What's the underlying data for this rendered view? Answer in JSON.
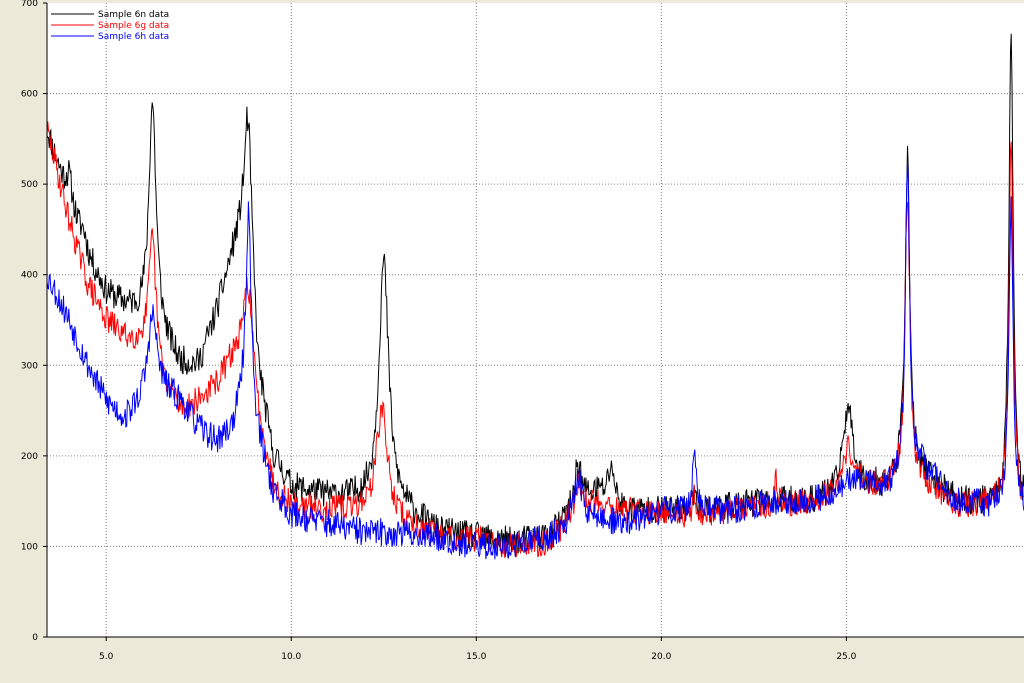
{
  "colors": {
    "window_background": "#ece9d8",
    "plot_background": "#ffffff",
    "grid": "#808080",
    "series_6n": "#000000",
    "series_6g": "#ff0000",
    "series_6h": "#0000ff"
  },
  "chart_data": {
    "type": "line",
    "title": "",
    "xlabel": "",
    "ylabel": "",
    "xlim": [
      3.4,
      29.8
    ],
    "ylim": [
      0,
      700
    ],
    "x_ticks": [
      5,
      10,
      15,
      20,
      25
    ],
    "x_tick_labels": [
      "5.0",
      "10.0",
      "15.0",
      "20.0",
      "25.0"
    ],
    "y_ticks": [
      0,
      100,
      200,
      300,
      400,
      500,
      600,
      700
    ],
    "y_tick_labels": [
      "0",
      "100",
      "200",
      "300",
      "400",
      "500",
      "600",
      "700"
    ],
    "grid": true,
    "grid_style": "dotted",
    "legend_position": "top-left",
    "series": [
      {
        "name": "Sample 6n data",
        "color": "#000000",
        "baseline": [
          [
            3.4,
            560
          ],
          [
            4.0,
            480
          ],
          [
            4.5,
            420
          ],
          [
            5.0,
            380
          ],
          [
            5.5,
            365
          ],
          [
            6.0,
            350
          ],
          [
            6.5,
            330
          ],
          [
            7.0,
            300
          ],
          [
            7.5,
            300
          ],
          [
            8.0,
            360
          ],
          [
            8.4,
            420
          ],
          [
            8.8,
            470
          ],
          [
            9.1,
            290
          ],
          [
            9.5,
            200
          ],
          [
            10.0,
            165
          ],
          [
            11.0,
            155
          ],
          [
            12.0,
            150
          ],
          [
            13.0,
            140
          ],
          [
            14.0,
            115
          ],
          [
            15.0,
            110
          ],
          [
            16.0,
            105
          ],
          [
            17.0,
            112
          ],
          [
            17.8,
            150
          ],
          [
            18.3,
            160
          ],
          [
            19.0,
            140
          ],
          [
            20.0,
            140
          ],
          [
            21.0,
            140
          ],
          [
            22.0,
            145
          ],
          [
            23.0,
            150
          ],
          [
            24.0,
            150
          ],
          [
            24.7,
            160
          ],
          [
            25.0,
            195
          ],
          [
            25.4,
            170
          ],
          [
            26.0,
            165
          ],
          [
            26.5,
            175
          ],
          [
            27.0,
            180
          ],
          [
            28.0,
            150
          ],
          [
            29.3,
            145
          ],
          [
            29.8,
            140
          ]
        ],
        "peaks": [
          [
            4.0,
            30,
            0.1
          ],
          [
            4.4,
            15,
            0.1
          ],
          [
            6.25,
            250,
            0.12
          ],
          [
            8.85,
            120,
            0.12
          ],
          [
            12.5,
            270,
            0.16
          ],
          [
            17.75,
            45,
            0.1
          ],
          [
            18.65,
            40,
            0.1
          ],
          [
            20.9,
            30,
            0.05
          ],
          [
            25.05,
            60,
            0.15
          ],
          [
            26.65,
            350,
            0.08
          ],
          [
            29.45,
            530,
            0.07
          ]
        ],
        "noise": 16,
        "seed": 11
      },
      {
        "name": "Sample 6g data",
        "color": "#ff0000",
        "baseline": [
          [
            3.4,
            560
          ],
          [
            4.0,
            460
          ],
          [
            4.5,
            390
          ],
          [
            5.0,
            350
          ],
          [
            5.5,
            330
          ],
          [
            6.0,
            320
          ],
          [
            6.5,
            280
          ],
          [
            7.0,
            250
          ],
          [
            7.5,
            260
          ],
          [
            8.0,
            280
          ],
          [
            8.4,
            310
          ],
          [
            8.8,
            330
          ],
          [
            9.1,
            250
          ],
          [
            9.5,
            170
          ],
          [
            10.0,
            145
          ],
          [
            11.0,
            140
          ],
          [
            12.0,
            138
          ],
          [
            13.0,
            125
          ],
          [
            14.0,
            110
          ],
          [
            15.0,
            108
          ],
          [
            16.0,
            100
          ],
          [
            17.0,
            105
          ],
          [
            17.8,
            145
          ],
          [
            18.3,
            150
          ],
          [
            19.0,
            140
          ],
          [
            20.0,
            135
          ],
          [
            21.0,
            135
          ],
          [
            22.0,
            140
          ],
          [
            23.0,
            145
          ],
          [
            24.0,
            150
          ],
          [
            24.7,
            160
          ],
          [
            25.0,
            180
          ],
          [
            25.4,
            170
          ],
          [
            26.0,
            165
          ],
          [
            26.5,
            170
          ],
          [
            27.0,
            170
          ],
          [
            28.0,
            145
          ],
          [
            29.3,
            145
          ],
          [
            29.8,
            140
          ]
        ],
        "peaks": [
          [
            6.25,
            140,
            0.12
          ],
          [
            8.85,
            70,
            0.12
          ],
          [
            12.45,
            120,
            0.18
          ],
          [
            17.75,
            30,
            0.1
          ],
          [
            20.9,
            25,
            0.05
          ],
          [
            23.1,
            30,
            0.05
          ],
          [
            25.05,
            30,
            0.15
          ],
          [
            26.65,
            320,
            0.08
          ],
          [
            29.45,
            400,
            0.07
          ]
        ],
        "noise": 15,
        "seed": 29
      },
      {
        "name": "Sample 6h data",
        "color": "#0000ff",
        "baseline": [
          [
            3.4,
            400
          ],
          [
            4.0,
            350
          ],
          [
            4.5,
            300
          ],
          [
            5.0,
            260
          ],
          [
            5.5,
            240
          ],
          [
            6.0,
            260
          ],
          [
            6.5,
            270
          ],
          [
            7.0,
            260
          ],
          [
            7.5,
            230
          ],
          [
            8.0,
            215
          ],
          [
            8.4,
            230
          ],
          [
            8.8,
            280
          ],
          [
            9.1,
            220
          ],
          [
            9.5,
            160
          ],
          [
            10.0,
            135
          ],
          [
            11.0,
            125
          ],
          [
            12.0,
            115
          ],
          [
            13.0,
            115
          ],
          [
            14.0,
            110
          ],
          [
            15.0,
            100
          ],
          [
            16.0,
            102
          ],
          [
            17.0,
            110
          ],
          [
            17.8,
            140
          ],
          [
            18.3,
            130
          ],
          [
            19.0,
            125
          ],
          [
            20.0,
            140
          ],
          [
            21.0,
            140
          ],
          [
            22.0,
            140
          ],
          [
            23.0,
            148
          ],
          [
            24.0,
            150
          ],
          [
            24.7,
            160
          ],
          [
            25.0,
            170
          ],
          [
            25.4,
            175
          ],
          [
            26.0,
            165
          ],
          [
            26.5,
            175
          ],
          [
            27.0,
            190
          ],
          [
            28.0,
            150
          ],
          [
            29.3,
            140
          ],
          [
            29.8,
            135
          ]
        ],
        "peaks": [
          [
            6.25,
            90,
            0.15
          ],
          [
            8.85,
            200,
            0.08
          ],
          [
            17.75,
            40,
            0.1
          ],
          [
            20.9,
            75,
            0.05
          ],
          [
            26.65,
            340,
            0.07
          ],
          [
            29.45,
            340,
            0.07
          ]
        ],
        "noise": 16,
        "seed": 53
      }
    ]
  }
}
